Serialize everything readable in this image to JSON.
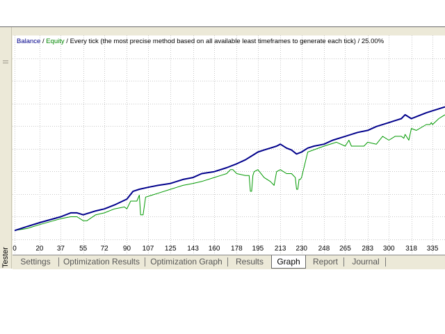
{
  "window": {
    "side_label": "Tester"
  },
  "chart_header": {
    "balance_label": "Balance",
    "sep1": " / ",
    "equity_label": "Equity",
    "sep2": " / ",
    "model_text": "Every tick (the most precise method based on all available least timeframes to generate each tick)",
    "sep3": " / ",
    "quality": "25.00%"
  },
  "colors": {
    "balance": "#00008b",
    "equity": "#009900",
    "grid": "#c8c8c8",
    "panel": "#ece9d8"
  },
  "tabs": [
    {
      "label": "Settings",
      "active": false
    },
    {
      "label": "Optimization Results",
      "active": false
    },
    {
      "label": "Optimization Graph",
      "active": false
    },
    {
      "label": "Results",
      "active": false
    },
    {
      "label": "Graph",
      "active": true
    },
    {
      "label": "Report",
      "active": false
    },
    {
      "label": "Journal",
      "active": false
    }
  ],
  "chart_data": {
    "type": "line",
    "x_ticks": [
      "0",
      "20",
      "37",
      "55",
      "72",
      "90",
      "107",
      "125",
      "143",
      "160",
      "178",
      "195",
      "213",
      "230",
      "248",
      "265",
      "283",
      "300",
      "318",
      "335"
    ],
    "xlim": [
      0,
      345
    ],
    "ylim": [
      0,
      100
    ],
    "grid": true,
    "series": [
      {
        "name": "Balance",
        "x": [
          0,
          10,
          20,
          37,
          45,
          50,
          55,
          65,
          72,
          80,
          90,
          95,
          100,
          107,
          115,
          125,
          135,
          143,
          150,
          160,
          170,
          178,
          185,
          190,
          195,
          200,
          205,
          210,
          213,
          218,
          222,
          226,
          230,
          235,
          240,
          248,
          255,
          265,
          275,
          283,
          290,
          300,
          305,
          310,
          313,
          318,
          322,
          330,
          335,
          340,
          345
        ],
        "y": [
          7,
          9,
          11,
          14,
          16,
          16,
          15,
          17,
          18,
          20,
          23,
          27,
          28,
          29,
          30,
          31,
          33,
          34,
          36,
          37,
          39,
          41,
          43,
          45,
          47,
          48,
          49,
          50,
          51,
          49,
          48,
          46,
          47,
          49,
          50,
          51,
          53,
          55,
          57,
          58,
          60,
          62,
          63,
          64,
          66,
          64,
          65,
          67,
          68,
          69,
          70
        ]
      },
      {
        "name": "Equity",
        "x": [
          0,
          10,
          20,
          37,
          45,
          50,
          55,
          58,
          65,
          72,
          80,
          88,
          90,
          93,
          98,
          100,
          101,
          103,
          105,
          110,
          115,
          125,
          135,
          143,
          150,
          160,
          165,
          170,
          173,
          175,
          178,
          185,
          188,
          189,
          190,
          191,
          192,
          195,
          200,
          205,
          208,
          210,
          213,
          218,
          222,
          225,
          226,
          227,
          228,
          229,
          230,
          235,
          248,
          258,
          265,
          268,
          270,
          280,
          283,
          290,
          295,
          300,
          305,
          310,
          312,
          313,
          314,
          316,
          318,
          322,
          330,
          333,
          334,
          335,
          340,
          345
        ],
        "y": [
          7,
          8,
          10,
          13,
          14,
          14,
          12,
          12,
          15,
          16,
          18,
          19,
          18,
          22,
          22,
          25,
          15,
          15,
          24,
          25,
          26,
          28,
          30,
          31,
          32,
          34,
          35,
          36,
          38,
          38,
          36,
          35,
          35,
          27,
          27,
          35,
          37,
          38,
          34,
          32,
          30,
          37,
          38,
          36,
          36,
          34,
          28,
          28,
          33,
          33,
          34,
          47,
          50,
          52,
          50,
          53,
          50,
          50,
          52,
          51,
          55,
          53,
          55,
          55,
          54,
          56,
          55,
          53,
          59,
          58,
          61,
          61,
          62,
          61,
          64,
          66
        ]
      }
    ]
  }
}
